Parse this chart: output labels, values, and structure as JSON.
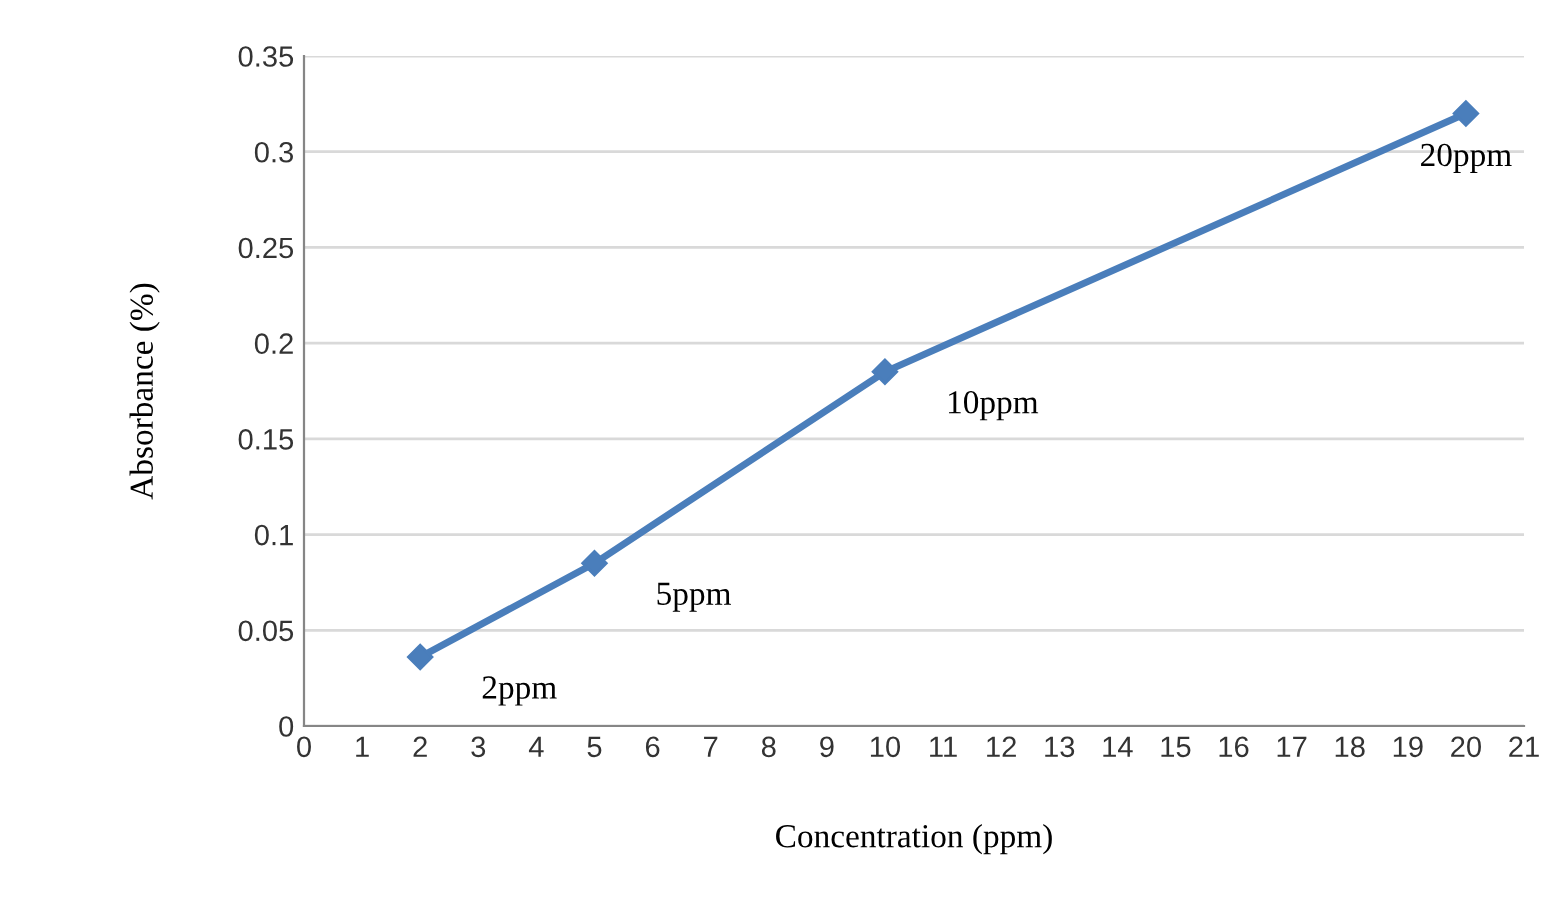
{
  "chart_data": {
    "type": "line",
    "xlabel": "Concentration (ppm)",
    "ylabel": "Absorbance (%)",
    "series": [
      {
        "color": "#4a7ebb",
        "x": [
          2,
          5,
          10,
          20
        ],
        "values": [
          0.036,
          0.085,
          0.185,
          0.32
        ]
      }
    ],
    "xlim": [
      0,
      21
    ],
    "xticks": [
      0,
      1,
      2,
      3,
      4,
      5,
      6,
      7,
      8,
      9,
      10,
      11,
      12,
      13,
      14,
      15,
      16,
      17,
      18,
      19,
      20,
      21
    ],
    "ylim": [
      0,
      0.35
    ],
    "yticks": [
      0,
      0.05,
      0.1,
      0.15,
      0.2,
      0.25,
      0.3,
      0.35
    ],
    "grid": "y",
    "legend": false,
    "marker": "diamond",
    "line_style": "solid",
    "annotations": [
      {
        "text": "2ppm",
        "x": 2,
        "y": 0.036
      },
      {
        "text": "5ppm",
        "x": 5,
        "y": 0.085
      },
      {
        "text": "10ppm",
        "x": 10,
        "y": 0.185
      },
      {
        "text": "20ppm",
        "x": 20,
        "y": 0.32
      }
    ]
  }
}
